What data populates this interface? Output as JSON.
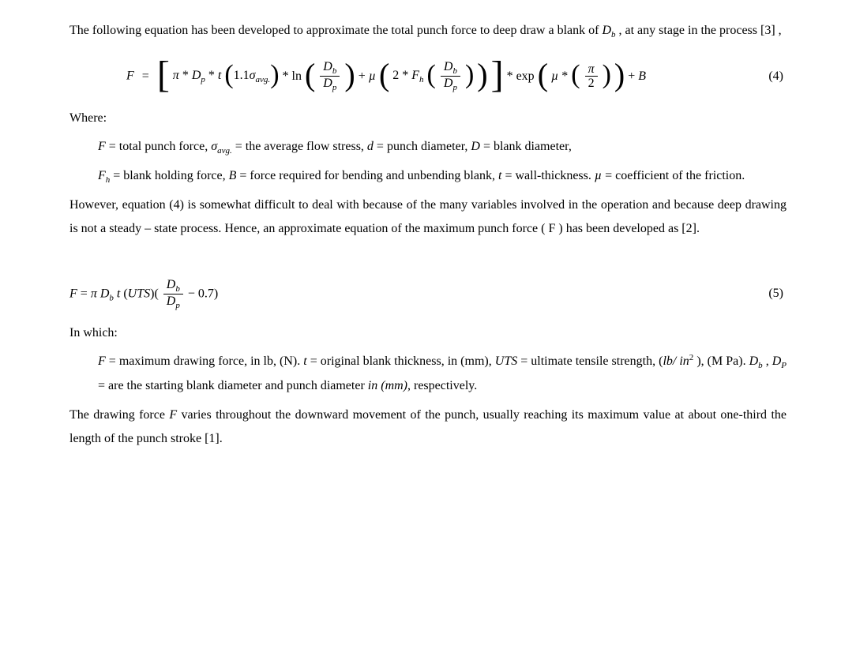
{
  "intro": {
    "line1_pre": "The following equation has been developed to approximate the total punch force to deep draw a blank of ",
    "Db_sym_D": "D",
    "Db_sym_b": "b",
    "line1_post": " , at any stage in the process [3] ,"
  },
  "eq4": {
    "number_label": "(4)",
    "pi": "π",
    "star": " * ",
    "D": "D",
    "p": "p",
    "b": "b",
    "t": "t",
    "oneptone": "1.1",
    "sigma": "σ",
    "avg": "avg.",
    "ln": "ln",
    "mu": "µ",
    "two": "2",
    "Fh_F": "F",
    "Fh_h": "h",
    "exp": "exp",
    "half_num": "π",
    "half_den": "2",
    "plusB": "B",
    "F": "F",
    "eq": "="
  },
  "where_label": "Where:",
  "defs1": {
    "F_pre": "F",
    "F_txt": " = total punch force, ",
    "sigma": "σ",
    "avg": "avg.",
    "sigma_txt": " = the average flow stress, ",
    "d": "d",
    "d_txt": "  = punch diameter, ",
    "D": "D",
    "D_txt": "  = blank diameter,"
  },
  "defs2": {
    "Fh_F": "F",
    "Fh_h": "h",
    "Fh_txt": "  =  blank  holding  force,  ",
    "B": "B",
    "B_txt": "  =  force  required  for  bending  and  unbending  blank,  ",
    "t": "t",
    "t_txt": " =  wall-thickness. ",
    "mu": "µ",
    "mu_txt": " = coefficient of the friction."
  },
  "mid_para": "However, equation (4) is somewhat difficult to deal with because of the many variables involved in the operation and because deep drawing is not a steady – state process. Hence, an approximate equation of the maximum punch force ( F ) has been developed as [2].",
  "eq5": {
    "number_label": "(5)",
    "F": "F",
    "eq": " = ",
    "pi": "π",
    "D": "D",
    "b": "b",
    "p": "p",
    "t": "t",
    "UTS": "UTS",
    "minus07": " − 0.7)"
  },
  "inwhich_label": "In which:",
  "defs3": {
    "F": "F",
    "F_txt": " = maximum drawing force, in lb, (N).   ",
    "t": "t",
    "t_txt": "  = original blank thickness, in (mm), ",
    "UTS": "UTS",
    "UTS_txt": "  = ultimate tensile strength, (",
    "lb_in2_lb": "lb/ in",
    "lb_in2_exp": "2",
    "UTS_post": " ), (M Pa). ",
    "Db_D": "D",
    "Db_b": "b",
    "comma": " , ",
    "Dp_D": "D",
    "Dp_p": "P",
    "are_txt": "  = are the starting blank diameter and punch diameter ",
    "in": "in",
    "mm_txt": " (mm)",
    "resp": ", respectively."
  },
  "final_para_pre": "The drawing force ",
  "final_para_F": "F",
  "final_para_post": " varies throughout the downward movement of the punch, usually reaching its maximum value at about one-third the length of the punch stroke [1]."
}
